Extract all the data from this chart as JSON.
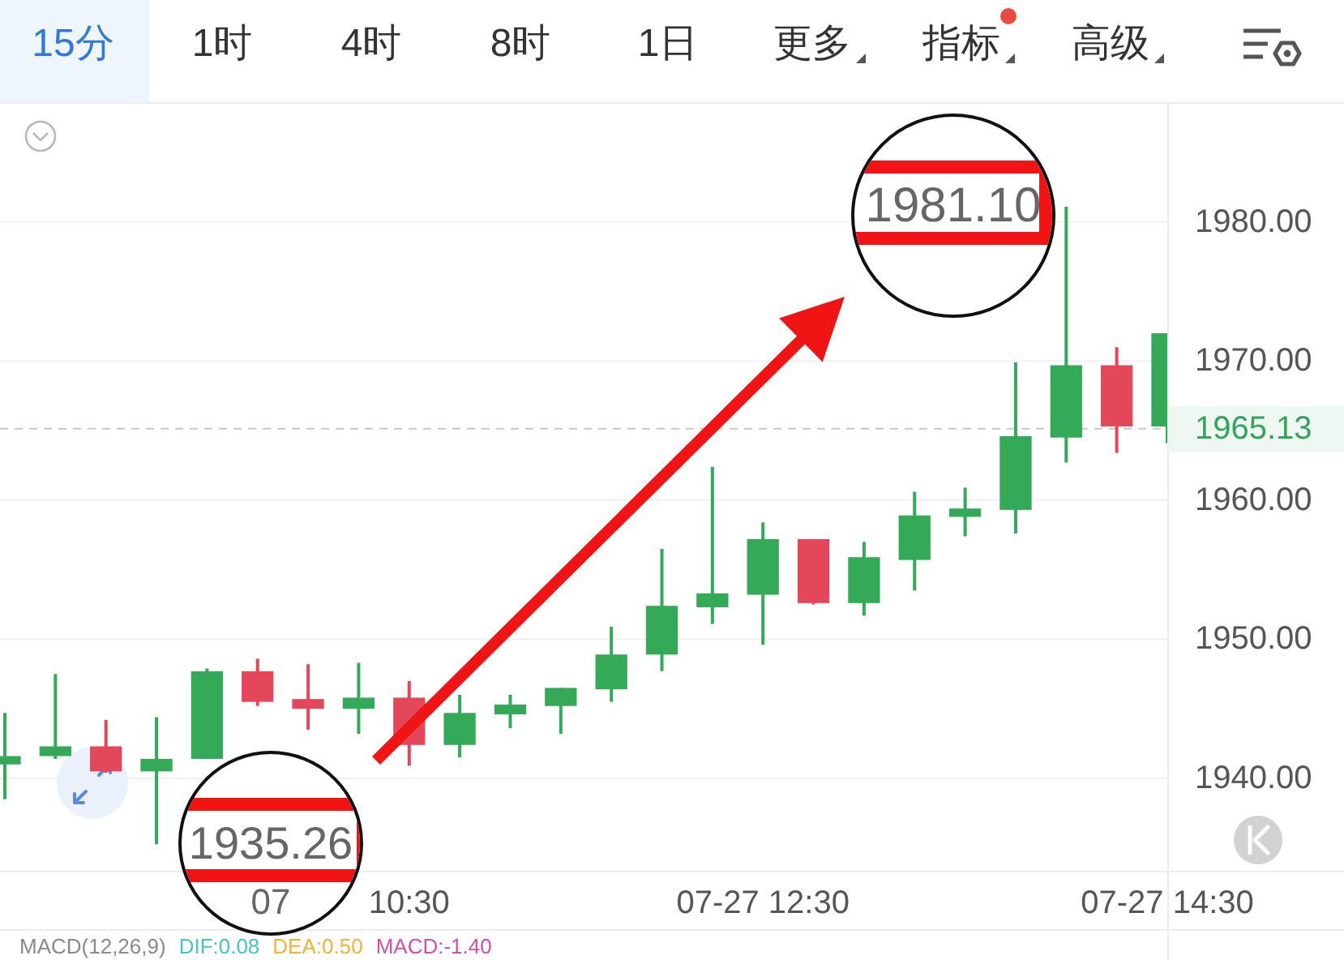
{
  "chart_data": {
    "type": "candlestick",
    "categories": [
      null,
      null,
      null,
      null,
      null,
      null,
      null,
      null,
      "10:30",
      null,
      null,
      null,
      null,
      null,
      null,
      "07-27 12:30",
      null,
      null,
      null,
      null,
      null,
      null,
      null,
      "07-27 14:30"
    ],
    "ohlc": [
      [
        1941.0,
        1944.7,
        1938.5,
        1941.6
      ],
      [
        1941.6,
        1947.5,
        1941.4,
        1942.3
      ],
      [
        1942.3,
        1944.2,
        1940.4,
        1940.5
      ],
      [
        1940.5,
        1944.4,
        1935.26,
        1941.4
      ],
      [
        1941.4,
        1947.9,
        1941.4,
        1947.7
      ],
      [
        1947.7,
        1948.6,
        1945.2,
        1945.5
      ],
      [
        1945.7,
        1948.2,
        1943.5,
        1945.0
      ],
      [
        1945.0,
        1948.3,
        1943.2,
        1945.8
      ],
      [
        1945.8,
        1947.0,
        1940.9,
        1942.4
      ],
      [
        1942.4,
        1946.0,
        1941.5,
        1944.7
      ],
      [
        1944.6,
        1946.0,
        1943.6,
        1945.3
      ],
      [
        1945.2,
        1946.5,
        1943.2,
        1946.5
      ],
      [
        1946.4,
        1950.9,
        1945.5,
        1948.9
      ],
      [
        1948.9,
        1956.5,
        1947.7,
        1952.4
      ],
      [
        1952.3,
        1962.4,
        1951.1,
        1953.3
      ],
      [
        1953.2,
        1958.4,
        1949.6,
        1957.2
      ],
      [
        1957.2,
        1957.2,
        1952.5,
        1952.6
      ],
      [
        1952.6,
        1957.0,
        1951.7,
        1955.9
      ],
      [
        1955.7,
        1960.6,
        1953.5,
        1958.9
      ],
      [
        1958.8,
        1960.9,
        1957.4,
        1959.4
      ],
      [
        1959.3,
        1969.9,
        1957.6,
        1964.6
      ],
      [
        1964.5,
        1981.1,
        1962.7,
        1969.7
      ],
      [
        1969.7,
        1971.0,
        1963.4,
        1965.3
      ],
      [
        1965.3,
        1972.0,
        1964.1,
        1972.0
      ]
    ],
    "colors": [
      "#34a958",
      "#34a958",
      "#e4475a",
      "#34a958",
      "#34a958",
      "#e4475a",
      "#e4475a",
      "#34a958",
      "#e4475a",
      "#34a958",
      "#34a958",
      "#34a958",
      "#34a958",
      "#34a958",
      "#34a958",
      "#34a958",
      "#e4475a",
      "#34a958",
      "#34a958",
      "#34a958",
      "#34a958",
      "#34a958",
      "#e4475a",
      "#34a958"
    ],
    "ylim": [
      1933.35,
      1988.5
    ],
    "yticks": [
      {
        "value": 1940,
        "label": "1940.00"
      },
      {
        "value": 1950,
        "label": "1950.00"
      },
      {
        "value": 1960,
        "label": "1960.00"
      },
      {
        "value": 1970,
        "label": "1970.00"
      },
      {
        "value": 1980,
        "label": "1980.00"
      }
    ],
    "grid": "y",
    "ref_lines": [
      {
        "axis": "y",
        "value": 1965.13,
        "label": "1965.13",
        "color": "#c8c8c8",
        "line_style": "dashed"
      }
    ],
    "annotations": [
      "15分",
      "1时",
      "4时",
      "8时",
      "1日",
      "更多",
      "指标",
      "高级",
      "1935.26",
      "1981.10",
      "07",
      "MACD(12,26,9)",
      "DIF:0.08",
      "DEA:0.50",
      "MACD:-1.40"
    ]
  }
}
